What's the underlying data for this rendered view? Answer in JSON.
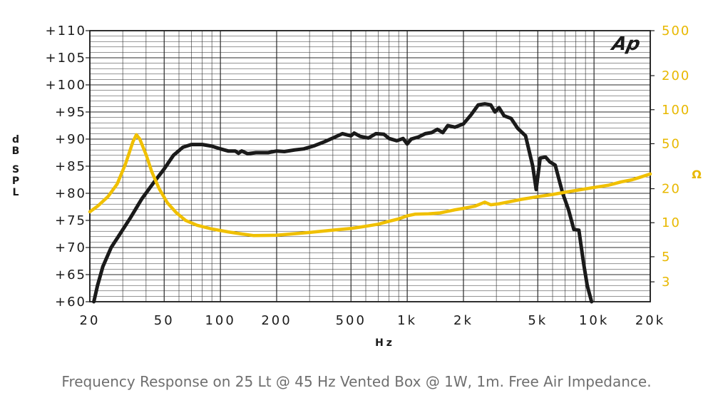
{
  "caption": "Frequency Response on 25 Lt @ 45 Hz Vented Box @ 1W, 1m. Free Air Impedance.",
  "logo": "Ap",
  "chart_data": {
    "type": "line",
    "xlabel": "Hz",
    "ylabel_left": "dB SPL",
    "ylabel_right": "Ω",
    "x_scale": "log",
    "xlim": [
      20,
      20000
    ],
    "ylim_left": [
      60,
      110
    ],
    "ylim_right_log": [
      2,
      500
    ],
    "grid": true,
    "x_ticks": [
      {
        "value": 20,
        "label": "20"
      },
      {
        "value": 50,
        "label": "50"
      },
      {
        "value": 100,
        "label": "100"
      },
      {
        "value": 200,
        "label": "200"
      },
      {
        "value": 500,
        "label": "500"
      },
      {
        "value": 1000,
        "label": "1k"
      },
      {
        "value": 2000,
        "label": "2k"
      },
      {
        "value": 5000,
        "label": "5k"
      },
      {
        "value": 10000,
        "label": "10k"
      },
      {
        "value": 20000,
        "label": "20k"
      }
    ],
    "y_ticks_left": [
      {
        "value": 110,
        "label": "+110"
      },
      {
        "value": 105,
        "label": "+105"
      },
      {
        "value": 100,
        "label": "+100"
      },
      {
        "value": 95,
        "label": "+95"
      },
      {
        "value": 90,
        "label": "+90"
      },
      {
        "value": 85,
        "label": "+85"
      },
      {
        "value": 80,
        "label": "+80"
      },
      {
        "value": 75,
        "label": "+75"
      },
      {
        "value": 70,
        "label": "+70"
      },
      {
        "value": 65,
        "label": "+65"
      },
      {
        "value": 60,
        "label": "+60"
      }
    ],
    "y_ticks_right": [
      {
        "value": 500,
        "label": "500"
      },
      {
        "value": 200,
        "label": "200"
      },
      {
        "value": 100,
        "label": "100"
      },
      {
        "value": 50,
        "label": "50"
      },
      {
        "value": 20,
        "label": "20"
      },
      {
        "value": 10,
        "label": "10"
      },
      {
        "value": 5,
        "label": "5"
      },
      {
        "value": 3,
        "label": "3"
      }
    ],
    "series": [
      {
        "axis": "left",
        "color": "#1a1a1a",
        "points": [
          [
            21,
            60
          ],
          [
            22,
            63
          ],
          [
            23.5,
            66.5
          ],
          [
            26,
            70
          ],
          [
            29,
            72.5
          ],
          [
            33,
            75.5
          ],
          [
            38,
            79
          ],
          [
            44,
            82
          ],
          [
            50,
            84.5
          ],
          [
            56,
            87
          ],
          [
            63,
            88.5
          ],
          [
            70,
            89
          ],
          [
            80,
            89
          ],
          [
            90,
            88.7
          ],
          [
            100,
            88.2
          ],
          [
            110,
            87.8
          ],
          [
            120,
            87.8
          ],
          [
            125,
            87.4
          ],
          [
            130,
            87.8
          ],
          [
            140,
            87.3
          ],
          [
            155,
            87.5
          ],
          [
            180,
            87.5
          ],
          [
            200,
            87.8
          ],
          [
            220,
            87.7
          ],
          [
            250,
            88
          ],
          [
            280,
            88.2
          ],
          [
            320,
            88.8
          ],
          [
            360,
            89.5
          ],
          [
            400,
            90.2
          ],
          [
            450,
            91
          ],
          [
            500,
            90.6
          ],
          [
            520,
            91.1
          ],
          [
            560,
            90.5
          ],
          [
            620,
            90.2
          ],
          [
            680,
            91
          ],
          [
            750,
            90.9
          ],
          [
            800,
            90.1
          ],
          [
            880,
            89.7
          ],
          [
            950,
            90.1
          ],
          [
            1000,
            89.1
          ],
          [
            1050,
            90
          ],
          [
            1150,
            90.4
          ],
          [
            1250,
            91
          ],
          [
            1350,
            91.2
          ],
          [
            1450,
            91.8
          ],
          [
            1550,
            91.2
          ],
          [
            1650,
            92.5
          ],
          [
            1800,
            92.2
          ],
          [
            2000,
            92.8
          ],
          [
            2200,
            94.5
          ],
          [
            2400,
            96.3
          ],
          [
            2600,
            96.5
          ],
          [
            2800,
            96.3
          ],
          [
            2950,
            95
          ],
          [
            3100,
            95.8
          ],
          [
            3300,
            94.3
          ],
          [
            3600,
            93.8
          ],
          [
            3900,
            92
          ],
          [
            4300,
            90.6
          ],
          [
            4700,
            85
          ],
          [
            4900,
            80.7
          ],
          [
            5150,
            86.5
          ],
          [
            5500,
            86.7
          ],
          [
            5800,
            85.8
          ],
          [
            6200,
            85.2
          ],
          [
            6800,
            80
          ],
          [
            7300,
            77
          ],
          [
            7800,
            73.3
          ],
          [
            8300,
            73.2
          ],
          [
            8800,
            67
          ],
          [
            9200,
            63
          ],
          [
            9700,
            60
          ]
        ]
      },
      {
        "axis": "right",
        "color": "#f0c000",
        "points": [
          [
            20,
            12.5
          ],
          [
            22,
            14
          ],
          [
            25,
            17
          ],
          [
            28,
            22
          ],
          [
            31,
            33
          ],
          [
            34,
            52
          ],
          [
            35.5,
            60
          ],
          [
            37,
            55
          ],
          [
            40,
            40
          ],
          [
            43,
            28
          ],
          [
            47,
            20
          ],
          [
            52,
            15
          ],
          [
            58,
            12.3
          ],
          [
            65,
            10.5
          ],
          [
            75,
            9.5
          ],
          [
            90,
            8.8
          ],
          [
            110,
            8.3
          ],
          [
            130,
            7.95
          ],
          [
            150,
            7.7
          ],
          [
            200,
            7.75
          ],
          [
            250,
            8
          ],
          [
            300,
            8.2
          ],
          [
            400,
            8.6
          ],
          [
            500,
            8.9
          ],
          [
            600,
            9.3
          ],
          [
            700,
            9.7
          ],
          [
            800,
            10.3
          ],
          [
            900,
            10.8
          ],
          [
            1000,
            11.5
          ],
          [
            1100,
            11.9
          ],
          [
            1300,
            12
          ],
          [
            1500,
            12.2
          ],
          [
            1800,
            13
          ],
          [
            2000,
            13.4
          ],
          [
            2300,
            14
          ],
          [
            2500,
            14.8
          ],
          [
            2600,
            15.2
          ],
          [
            2800,
            14.4
          ],
          [
            3100,
            14.7
          ],
          [
            3500,
            15.3
          ],
          [
            4000,
            16
          ],
          [
            5000,
            17
          ],
          [
            6000,
            17.8
          ],
          [
            7000,
            18.6
          ],
          [
            8000,
            19.3
          ],
          [
            10000,
            20.5
          ],
          [
            12000,
            21.5
          ],
          [
            14000,
            23
          ],
          [
            16000,
            24
          ],
          [
            18000,
            25.5
          ],
          [
            20000,
            27
          ]
        ]
      }
    ]
  }
}
